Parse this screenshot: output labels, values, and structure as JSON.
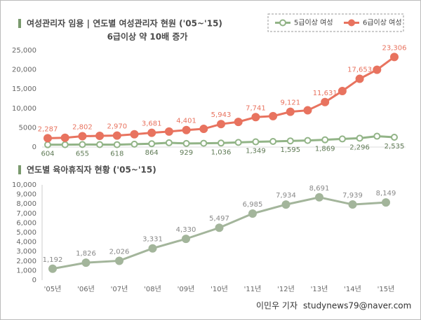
{
  "chart_data": [
    {
      "type": "line",
      "title": "여성관리자 임용 | 연도별 여성관리자 현원 ('05~'15)",
      "subtitle": "6급이상 약 10배 증가",
      "categories": [
        null,
        null,
        null,
        null,
        null,
        null,
        null,
        null,
        null,
        null,
        null,
        null,
        null,
        null,
        null,
        null,
        null,
        null,
        null,
        null,
        null
      ],
      "legend": "upper right",
      "grid": false,
      "ylim": [
        0,
        25000
      ],
      "yticks": [
        0,
        {
          "value": 5000,
          "label": "5000"
        },
        {
          "value": 10000,
          "label": "10,000"
        },
        {
          "value": 15000,
          "label": "15,000"
        },
        {
          "value": 20000,
          "label": "20,000"
        },
        {
          "value": 25000,
          "label": "25,000"
        }
      ],
      "series": [
        {
          "name": "5급이상 여성",
          "color": "#92b487",
          "marker": "open",
          "values": [
            604,
            620,
            655,
            640,
            618,
            750,
            864,
            1100,
            929,
            980,
            1036,
            1200,
            1349,
            1450,
            1595,
            1700,
            1869,
            2100,
            2296,
            2800,
            2535
          ],
          "value_labels": [
            "604",
            null,
            "655",
            null,
            "618",
            null,
            "864",
            null,
            "929",
            null,
            "1,036",
            null,
            "1,349",
            null,
            "1,595",
            null,
            "1,869",
            null,
            "2,296",
            null,
            "2,535"
          ]
        },
        {
          "name": "6급이상 여성",
          "color": "#e8735f",
          "marker": "filled",
          "values": [
            2287,
            2400,
            2802,
            2900,
            2970,
            3300,
            3681,
            4000,
            4401,
            4700,
            5943,
            6500,
            7741,
            8000,
            9121,
            9500,
            11631,
            14500,
            17653,
            20000,
            23306
          ],
          "value_labels": [
            "2,287",
            null,
            "2,802",
            null,
            "2,970",
            null,
            "3,681",
            null,
            "4,401",
            null,
            "5,943",
            null,
            "7,741",
            null,
            "9,121",
            null,
            "11,631",
            null,
            "17,653",
            null,
            "23,306"
          ]
        }
      ]
    },
    {
      "type": "line",
      "title": "연도별 육아휴직자 현황 ('05~'15)",
      "categories": [
        "'05년",
        "'06년",
        "'07년",
        "'08년",
        "'09년",
        "'10년",
        "'11년",
        "'12년",
        "'13년",
        "'14년",
        "'15년"
      ],
      "color": "#a3b59b",
      "marker": "filled",
      "grid": false,
      "ylim": [
        0,
        10000
      ],
      "yticks": [
        0,
        {
          "value": 1000,
          "label": "1,000"
        },
        {
          "value": 2000,
          "label": "2,000"
        },
        {
          "value": 3000,
          "label": "3,000"
        },
        {
          "value": 4000,
          "label": "4,000"
        },
        {
          "value": 5000,
          "label": "5,000"
        },
        {
          "value": 6000,
          "label": "6,000"
        },
        {
          "value": 7000,
          "label": "7,000"
        },
        {
          "value": 8000,
          "label": "8,000"
        },
        {
          "value": 9000,
          "label": "9,000"
        },
        {
          "value": 10000,
          "label": "10,000"
        }
      ],
      "values": [
        1192,
        1826,
        2026,
        3331,
        4330,
        5497,
        6985,
        7934,
        8691,
        7939,
        8149
      ],
      "value_labels": [
        "1,192",
        "1,826",
        "2,026",
        "3,331",
        "4,330",
        "5,497",
        "6,985",
        "7,934",
        "8,691",
        "7,939",
        "8,149"
      ]
    }
  ],
  "footer": {
    "author": "이민우 기자",
    "email": "studynews79@naver.com"
  }
}
